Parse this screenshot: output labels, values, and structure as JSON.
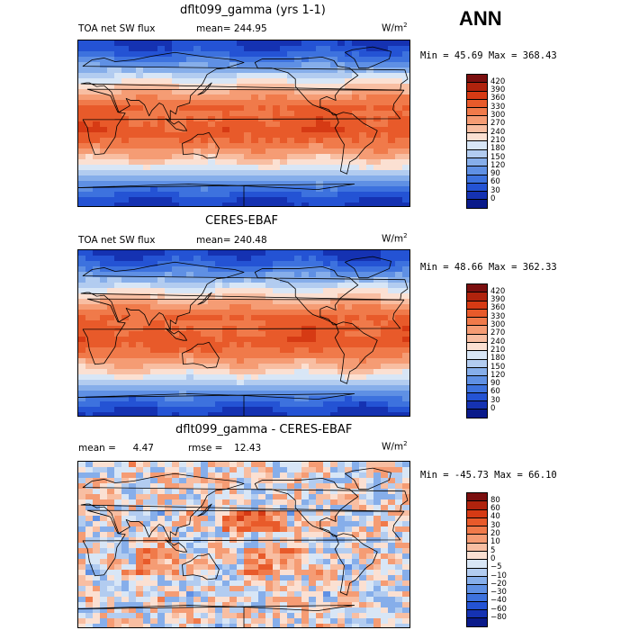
{
  "season": "ANN",
  "panels": [
    {
      "title": "dflt099_gamma (yrs 1-1)",
      "left_label": "TOA net SW flux",
      "stat_label": "mean=",
      "stat_value": "244.95",
      "units": "W/m",
      "units_exp": "2",
      "minmax": "Min =  45.69 Max = 368.43",
      "colorbar": {
        "labels": [
          "420",
          "390",
          "360",
          "330",
          "300",
          "270",
          "240",
          "210",
          "180",
          "150",
          "120",
          "90",
          "60",
          "30",
          "0"
        ],
        "colors": [
          "#7b0f0f",
          "#b0230d",
          "#d63a14",
          "#e85a2a",
          "#f07a4a",
          "#f59c74",
          "#f8bea2",
          "#fbe0d2",
          "#d8e6f6",
          "#b2ccf0",
          "#86aeea",
          "#5f90e4",
          "#3d72de",
          "#2453d4",
          "#1532b2",
          "#0a1a8a"
        ]
      }
    },
    {
      "title": "CERES-EBAF",
      "left_label": "TOA net SW flux",
      "stat_label": "mean=",
      "stat_value": "240.48",
      "units": "W/m",
      "units_exp": "2",
      "minmax": "Min =  48.66 Max = 362.33",
      "colorbar": {
        "labels": [
          "420",
          "390",
          "360",
          "330",
          "300",
          "270",
          "240",
          "210",
          "180",
          "150",
          "120",
          "90",
          "60",
          "30",
          "0"
        ],
        "colors": [
          "#7b0f0f",
          "#b0230d",
          "#d63a14",
          "#e85a2a",
          "#f07a4a",
          "#f59c74",
          "#f8bea2",
          "#fbe0d2",
          "#d8e6f6",
          "#b2ccf0",
          "#86aeea",
          "#5f90e4",
          "#3d72de",
          "#2453d4",
          "#1532b2",
          "#0a1a8a"
        ]
      }
    },
    {
      "title": "dflt099_gamma - CERES-EBAF",
      "left_label": "mean =",
      "left_value": "4.47",
      "stat_label": "rmse =",
      "stat_value": "12.43",
      "units": "W/m",
      "units_exp": "2",
      "minmax": "Min = -45.73 Max =  66.10",
      "colorbar": {
        "labels": [
          "80",
          "60",
          "40",
          "30",
          "20",
          "10",
          "5",
          "0",
          "−5",
          "−10",
          "−20",
          "−30",
          "−40",
          "−60",
          "−80"
        ],
        "colors": [
          "#7b0f0f",
          "#b0230d",
          "#d63a14",
          "#e85a2a",
          "#f07a4a",
          "#f59c74",
          "#f8bea2",
          "#fbe0d2",
          "#d8e6f6",
          "#b2ccf0",
          "#86aeea",
          "#5f90e4",
          "#3d72de",
          "#2453d4",
          "#1532b2",
          "#0a1a8a"
        ]
      }
    }
  ]
}
